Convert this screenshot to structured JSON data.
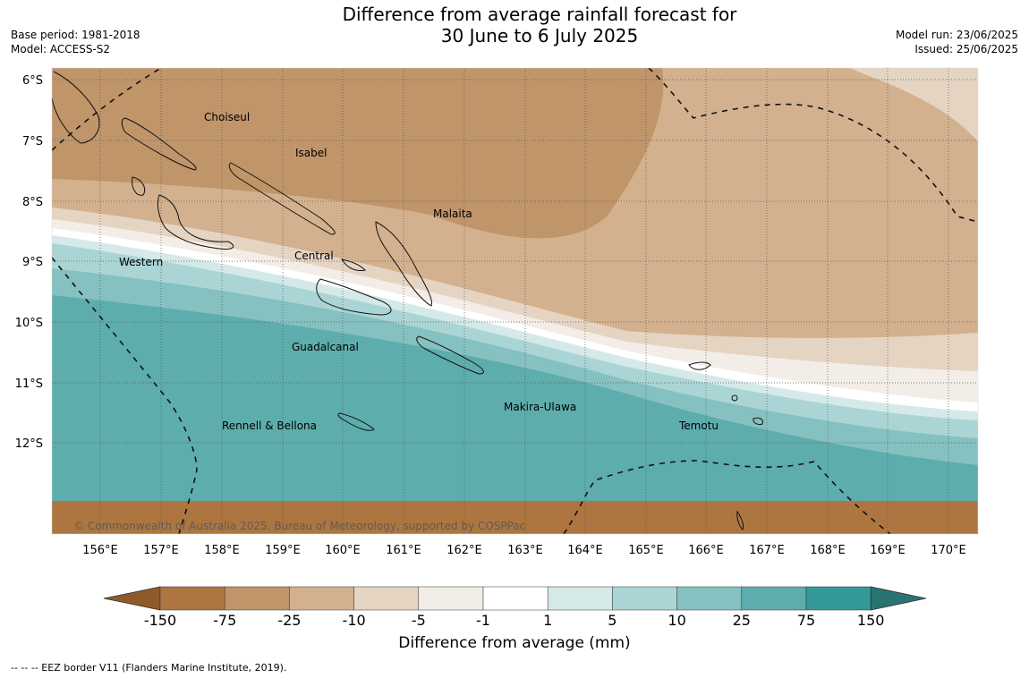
{
  "title": {
    "line1": "Difference from average rainfall forecast for",
    "line2": "30 June to 6 July 2025"
  },
  "meta_left": {
    "base_period": "Base period: 1981-2018",
    "model": "Model: ACCESS-S2"
  },
  "meta_right": {
    "model_run": "Model run: 23/06/2025",
    "issued": "Issued: 25/06/2025"
  },
  "copyright": "© Commonwealth of Australia 2025, Bureau of Meteorology, supported by COSPPac",
  "lat_labels": [
    "6°S",
    "7°S",
    "8°S",
    "9°S",
    "10°S",
    "11°S",
    "12°S"
  ],
  "lon_labels": [
    "156°E",
    "157°E",
    "158°E",
    "159°E",
    "160°E",
    "161°E",
    "162°E",
    "163°E",
    "164°E",
    "165°E",
    "166°E",
    "167°E",
    "168°E",
    "169°E",
    "170°E"
  ],
  "provinces": [
    "Choiseul",
    "Isabel",
    "Malaita",
    "Central",
    "Western",
    "Guadalcanal",
    "Makira-Ulawa",
    "Rennell & Bellona",
    "Temotu"
  ],
  "colorbar": {
    "ticks": [
      "-150",
      "-75",
      "-25",
      "-10",
      "-5",
      "-1",
      "1",
      "5",
      "10",
      "25",
      "75",
      "150"
    ],
    "colors": [
      "#8e5a2b",
      "#ad7640",
      "#c0956a",
      "#d3b18f",
      "#e6d4c3",
      "#f3ede7",
      "#ffffff",
      "#d5e9e8",
      "#abd5d5",
      "#85c1c1",
      "#5eadad",
      "#339999",
      "#2a7373"
    ],
    "label": "Difference from average (mm)"
  },
  "legend_note": "--  --  -- EEZ border V11 (Flanders Marine Institute, 2019)."
}
